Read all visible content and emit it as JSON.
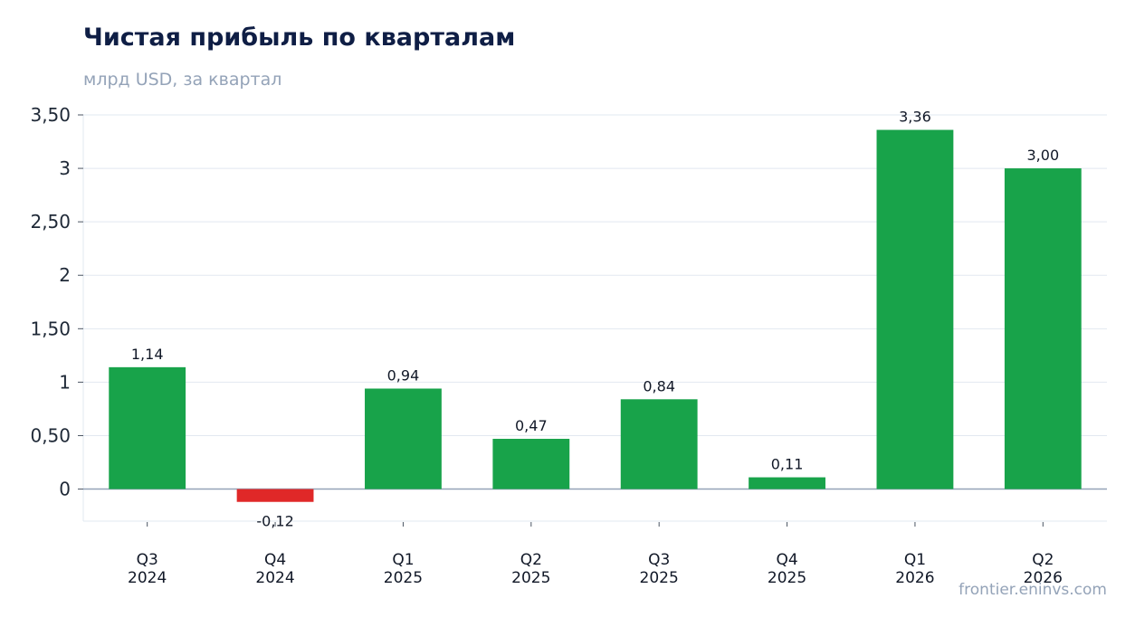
{
  "header": {
    "title": "Чистая прибыль по кварталам",
    "subtitle": "млрд USD, за квартал"
  },
  "source": "frontier.eninvs.com",
  "colors": {
    "positive": "#18a34a",
    "negative": "#e02828",
    "grid": "#e2e8f0",
    "zero_line": "#94a3b8"
  },
  "chart_data": {
    "type": "bar",
    "title": "Чистая прибыль по кварталам",
    "subtitle": "млрд USD, за квартал",
    "xlabel": "",
    "ylabel": "",
    "categories": [
      [
        "Q3",
        "2024"
      ],
      [
        "Q4",
        "2024"
      ],
      [
        "Q1",
        "2025"
      ],
      [
        "Q2",
        "2025"
      ],
      [
        "Q3",
        "2025"
      ],
      [
        "Q4",
        "2025"
      ],
      [
        "Q1",
        "2026"
      ],
      [
        "Q2",
        "2026"
      ]
    ],
    "values": [
      1.14,
      -0.12,
      0.94,
      0.47,
      0.84,
      0.11,
      3.36,
      3.0
    ],
    "data_labels": [
      "1,14",
      "-0,12",
      "0,94",
      "0,47",
      "0,84",
      "0,11",
      "3,36",
      "3,00"
    ],
    "ylim": [
      -0.3,
      3.5
    ],
    "yticks": [
      0,
      0.5,
      1,
      1.5,
      2,
      2.5,
      3,
      3.5
    ],
    "ytick_labels": [
      "0",
      "0,50",
      "1",
      "1,50",
      "2",
      "2,50",
      "3",
      "3,50"
    ],
    "grid": true,
    "legend": "none"
  }
}
